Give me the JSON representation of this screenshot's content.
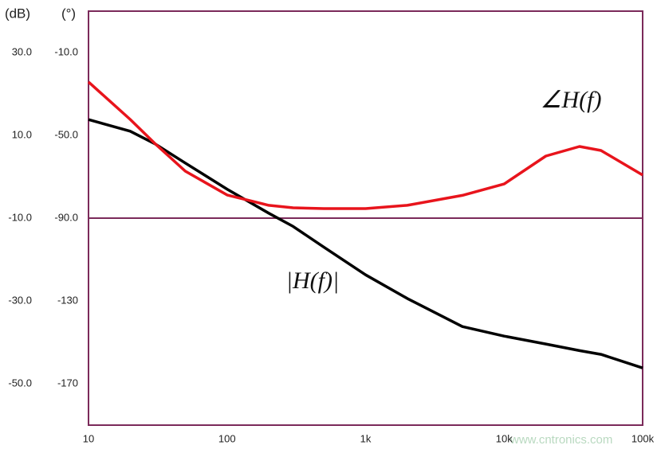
{
  "chart_data": {
    "type": "line",
    "y_label": "(dB)",
    "y2_label": "(°)",
    "x": [
      10,
      20,
      30,
      50,
      100,
      200,
      300,
      500,
      1000,
      2000,
      5000,
      10000,
      20000,
      35000,
      50000,
      100000
    ],
    "xlog": true,
    "xlim": [
      10,
      100000
    ],
    "xticks": [
      10,
      100,
      {
        "value": 1000,
        "label": "1k"
      },
      {
        "value": 10000,
        "label": "10k"
      },
      {
        "value": 100000,
        "label": "100k"
      }
    ],
    "ylim": [
      -60,
      40
    ],
    "yticks": [
      {
        "value": 30,
        "label": "30.0"
      },
      {
        "value": 10,
        "label": "10.0"
      },
      {
        "value": -10,
        "label": "-10.0"
      },
      {
        "value": -30,
        "label": "-30.0"
      },
      {
        "value": -50,
        "label": "-50.0"
      }
    ],
    "y2lim": [
      -190,
      10
    ],
    "y2ticks": [
      {
        "value": -10,
        "label": "-10.0"
      },
      {
        "value": -50,
        "label": "-50.0"
      },
      {
        "value": -90,
        "label": "-90.0"
      },
      -130,
      -170
    ],
    "reference_line": {
      "value": -90,
      "axis": "y2",
      "color": "#7b2a5a"
    },
    "frame_color": "#7b2a5a",
    "series": [
      {
        "name": "|H(f)|",
        "color": "#000000",
        "values": [
          13.8,
          11,
          8,
          3.3,
          -3,
          -8.8,
          -12,
          -17,
          -23.7,
          -29.4,
          -36.2,
          -38.5,
          -40.4,
          -42,
          -42.9,
          -46.2
        ]
      },
      {
        "name": "∠H(f)",
        "color": "#e8141c",
        "axis": "y2",
        "values": [
          -24.2,
          -42.3,
          -53.8,
          -67.3,
          -78.8,
          -83.8,
          -85,
          -85.4,
          -85.4,
          -83.8,
          -79,
          -73.5,
          -60,
          -55.4,
          -57.3,
          -69.2
        ]
      }
    ],
    "watermark": "www.cntronics.com"
  }
}
